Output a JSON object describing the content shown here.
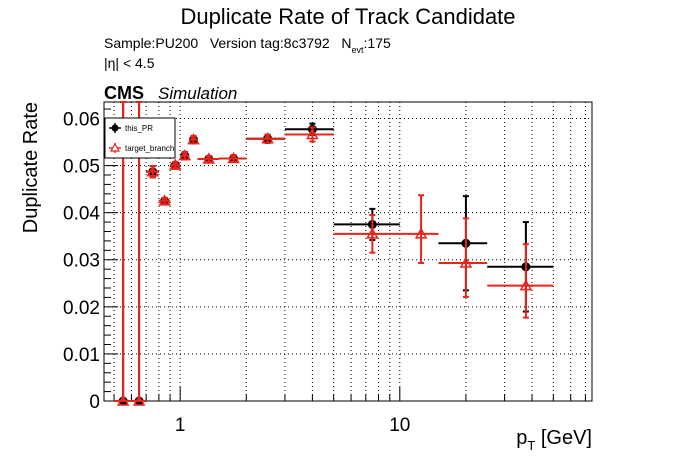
{
  "header": {
    "title": "Duplicate Rate of Track Candidate",
    "sample": "Sample:PU200",
    "version": "Version tag:8c3792",
    "nevt_prefix": "N",
    "nevt_sub": "evt",
    "nevt_value": ":175",
    "eta_cut": "|η| < 4.5",
    "experiment": "CMS",
    "status": "Simulation"
  },
  "colors": {
    "this_PR": "#000000",
    "target_branch": "#e8241b",
    "grid": "#000000"
  },
  "chart_data": {
    "type": "scatter",
    "x_scale": "log",
    "xlim": [
      0.45,
      75
    ],
    "ylim": [
      0,
      0.0635
    ],
    "grid": true,
    "legend_position": "top-left",
    "xlabel_main": "p",
    "xlabel_sub": "T",
    "xlabel_unit": " [GeV]",
    "ylabel": "Duplicate Rate",
    "x_ticks": [
      "1",
      "10"
    ],
    "x_tick_values": [
      1,
      10
    ],
    "y_ticks": [
      "0",
      "0.01",
      "0.02",
      "0.03",
      "0.04",
      "0.05",
      "0.06"
    ],
    "y_tick_values": [
      0,
      0.01,
      0.02,
      0.03,
      0.04,
      0.05,
      0.06
    ],
    "series": [
      {
        "name": "this_PR",
        "marker": "filled-circle",
        "color": "#000000",
        "points": [
          {
            "x": 0.55,
            "xlo": 0.5,
            "xhi": 0.6,
            "y": 0.0,
            "elo": 0.0,
            "ehi": 0.0635
          },
          {
            "x": 0.65,
            "xlo": 0.6,
            "xhi": 0.7,
            "y": 0.0,
            "elo": 0.0,
            "ehi": 0.0635
          },
          {
            "x": 0.75,
            "xlo": 0.7,
            "xhi": 0.8,
            "y": 0.0487,
            "elo": 0.0012,
            "ehi": 0.0012
          },
          {
            "x": 0.85,
            "xlo": 0.8,
            "xhi": 0.9,
            "y": 0.0425,
            "elo": 0.0006,
            "ehi": 0.0006
          },
          {
            "x": 0.95,
            "xlo": 0.9,
            "xhi": 1.0,
            "y": 0.0501,
            "elo": 0.0006,
            "ehi": 0.0006
          },
          {
            "x": 1.05,
            "xlo": 1.0,
            "xhi": 1.1,
            "y": 0.0521,
            "elo": 0.0008,
            "ehi": 0.0008
          },
          {
            "x": 1.15,
            "xlo": 1.1,
            "xhi": 1.2,
            "y": 0.0555,
            "elo": 0.0008,
            "ehi": 0.0008
          },
          {
            "x": 1.35,
            "xlo": 1.2,
            "xhi": 1.5,
            "y": 0.0514,
            "elo": 0.0006,
            "ehi": 0.0006
          },
          {
            "x": 1.75,
            "xlo": 1.5,
            "xhi": 2.0,
            "y": 0.0515,
            "elo": 0.0007,
            "ehi": 0.0007
          },
          {
            "x": 2.5,
            "xlo": 2.0,
            "xhi": 3.0,
            "y": 0.0557,
            "elo": 0.0009,
            "ehi": 0.0009
          },
          {
            "x": 4.0,
            "xlo": 3.0,
            "xhi": 5.0,
            "y": 0.0577,
            "elo": 0.0012,
            "ehi": 0.0012
          },
          {
            "x": 7.5,
            "xlo": 5.0,
            "xhi": 10.0,
            "y": 0.0375,
            "elo": 0.0033,
            "ehi": 0.0033
          },
          {
            "x": 20.0,
            "xlo": 15.0,
            "xhi": 25.0,
            "y": 0.0335,
            "elo": 0.01,
            "ehi": 0.01
          },
          {
            "x": 37.5,
            "xlo": 25.0,
            "xhi": 50.0,
            "y": 0.0285,
            "elo": 0.0095,
            "ehi": 0.0095
          }
        ]
      },
      {
        "name": "target_branch",
        "marker": "open-triangle",
        "color": "#e8241b",
        "points": [
          {
            "x": 0.55,
            "xlo": 0.5,
            "xhi": 0.6,
            "y": 0.0,
            "elo": 0.0,
            "ehi": 0.0635
          },
          {
            "x": 0.65,
            "xlo": 0.6,
            "xhi": 0.7,
            "y": 0.0,
            "elo": 0.0,
            "ehi": 0.0635
          },
          {
            "x": 0.75,
            "xlo": 0.7,
            "xhi": 0.8,
            "y": 0.0487,
            "elo": 0.0012,
            "ehi": 0.0012
          },
          {
            "x": 0.85,
            "xlo": 0.8,
            "xhi": 0.9,
            "y": 0.0425,
            "elo": 0.0006,
            "ehi": 0.0006
          },
          {
            "x": 0.95,
            "xlo": 0.9,
            "xhi": 1.0,
            "y": 0.0501,
            "elo": 0.0006,
            "ehi": 0.0006
          },
          {
            "x": 1.05,
            "xlo": 1.0,
            "xhi": 1.1,
            "y": 0.0521,
            "elo": 0.0008,
            "ehi": 0.0008
          },
          {
            "x": 1.15,
            "xlo": 1.1,
            "xhi": 1.2,
            "y": 0.0555,
            "elo": 0.0008,
            "ehi": 0.0008
          },
          {
            "x": 1.35,
            "xlo": 1.2,
            "xhi": 1.5,
            "y": 0.0514,
            "elo": 0.0006,
            "ehi": 0.0006
          },
          {
            "x": 1.75,
            "xlo": 1.5,
            "xhi": 2.0,
            "y": 0.0515,
            "elo": 0.0007,
            "ehi": 0.0007
          },
          {
            "x": 2.5,
            "xlo": 2.0,
            "xhi": 3.0,
            "y": 0.0557,
            "elo": 0.0009,
            "ehi": 0.0009
          },
          {
            "x": 4.0,
            "xlo": 3.0,
            "xhi": 5.0,
            "y": 0.0566,
            "elo": 0.0015,
            "ehi": 0.0015
          },
          {
            "x": 7.5,
            "xlo": 5.0,
            "xhi": 10.0,
            "y": 0.0355,
            "elo": 0.004,
            "ehi": 0.004
          },
          {
            "x": 12.5,
            "xlo": 10.0,
            "xhi": 15.0,
            "y": 0.0355,
            "elo": 0.0062,
            "ehi": 0.0082
          },
          {
            "x": 20.0,
            "xlo": 15.0,
            "xhi": 25.0,
            "y": 0.0293,
            "elo": 0.0072,
            "ehi": 0.0095
          },
          {
            "x": 37.5,
            "xlo": 25.0,
            "xhi": 50.0,
            "y": 0.0245,
            "elo": 0.0068,
            "ehi": 0.0088
          }
        ]
      }
    ]
  }
}
